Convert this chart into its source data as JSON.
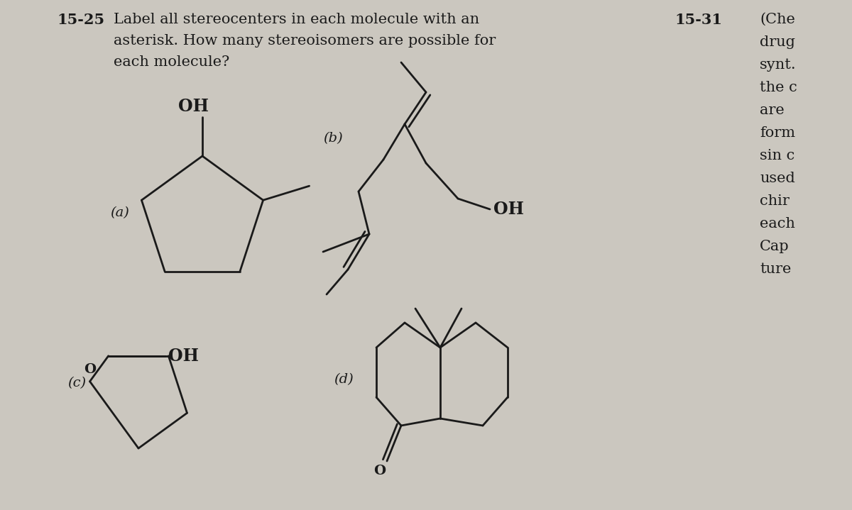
{
  "background_color": "#cbc7bf",
  "title_number": "15-25",
  "right_number": "15-31",
  "right_lines": [
    "(Che",
    "drug",
    "synt.",
    "the c",
    "are",
    "form",
    "sin c",
    "used",
    "chir",
    "each",
    "Cap",
    "ture"
  ],
  "labels": [
    "(a)",
    "(b)",
    "(c)",
    "(d)"
  ]
}
